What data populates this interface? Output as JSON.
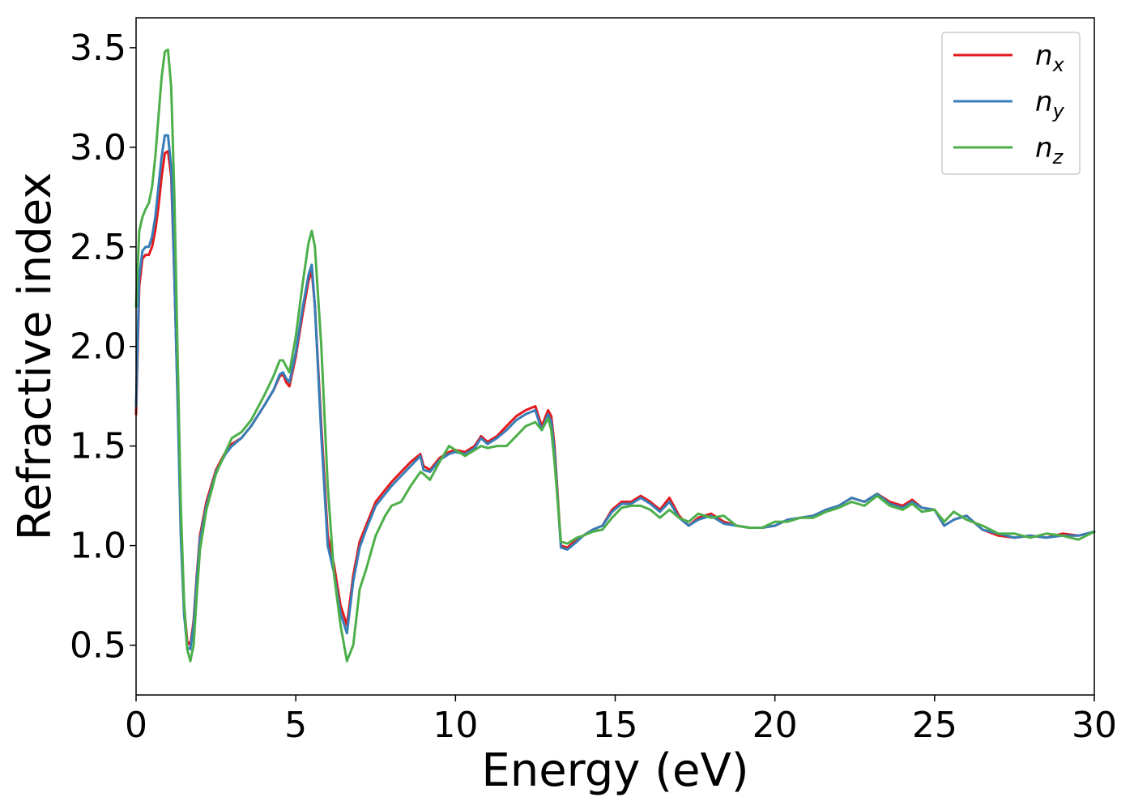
{
  "chart_data": {
    "type": "line",
    "title": "",
    "xlabel": "Energy (eV)",
    "ylabel": "Refractive index",
    "xlim": [
      0,
      30
    ],
    "ylim": [
      0.25,
      3.65
    ],
    "xticks": [
      0,
      5,
      10,
      15,
      20,
      25,
      30
    ],
    "yticks": [
      0.5,
      1.0,
      1.5,
      2.0,
      2.5,
      3.0,
      3.5
    ],
    "xtick_labels": [
      "0",
      "5",
      "10",
      "15",
      "20",
      "25",
      "30"
    ],
    "ytick_labels": [
      "0.5",
      "1.0",
      "1.5",
      "2.0",
      "2.5",
      "3.0",
      "3.5"
    ],
    "grid": false,
    "legend_position": "top-right",
    "series": [
      {
        "name": "n",
        "subscript": "x",
        "color": "#e41a1c",
        "x": [
          0,
          0.1,
          0.2,
          0.3,
          0.4,
          0.5,
          0.6,
          0.7,
          0.8,
          0.9,
          1.0,
          1.1,
          1.2,
          1.3,
          1.4,
          1.5,
          1.6,
          1.7,
          1.8,
          1.9,
          2.0,
          2.2,
          2.5,
          2.8,
          3.0,
          3.3,
          3.6,
          4.0,
          4.3,
          4.5,
          4.6,
          4.7,
          4.8,
          5.0,
          5.2,
          5.4,
          5.5,
          5.6,
          5.8,
          6.0,
          6.2,
          6.4,
          6.6,
          6.8,
          7.0,
          7.2,
          7.5,
          7.8,
          8.0,
          8.3,
          8.6,
          8.9,
          9.0,
          9.2,
          9.5,
          9.8,
          10.0,
          10.3,
          10.6,
          10.8,
          11.0,
          11.3,
          11.6,
          11.9,
          12.2,
          12.5,
          12.7,
          12.9,
          13.0,
          13.1,
          13.3,
          13.5,
          13.8,
          14.0,
          14.3,
          14.6,
          14.9,
          15.2,
          15.5,
          15.8,
          16.1,
          16.4,
          16.7,
          17.0,
          17.3,
          17.6,
          18.0,
          18.4,
          18.8,
          19.2,
          19.6,
          20.0,
          20.4,
          20.8,
          21.2,
          21.6,
          22.0,
          22.4,
          22.8,
          23.2,
          23.6,
          24.0,
          24.3,
          24.6,
          25.0,
          25.3,
          25.6,
          26.0,
          26.5,
          27.0,
          27.5,
          28.0,
          28.5,
          29.0,
          29.5,
          30.0
        ],
        "y": [
          1.66,
          2.3,
          2.44,
          2.46,
          2.46,
          2.5,
          2.58,
          2.7,
          2.85,
          2.97,
          2.98,
          2.85,
          2.35,
          1.75,
          1.1,
          0.7,
          0.52,
          0.5,
          0.62,
          0.85,
          1.05,
          1.22,
          1.38,
          1.47,
          1.51,
          1.54,
          1.6,
          1.7,
          1.78,
          1.85,
          1.86,
          1.82,
          1.8,
          1.95,
          2.15,
          2.33,
          2.38,
          2.2,
          1.6,
          1.05,
          0.9,
          0.7,
          0.6,
          0.85,
          1.02,
          1.1,
          1.22,
          1.28,
          1.32,
          1.37,
          1.42,
          1.46,
          1.4,
          1.38,
          1.44,
          1.47,
          1.48,
          1.47,
          1.5,
          1.55,
          1.52,
          1.55,
          1.6,
          1.65,
          1.68,
          1.7,
          1.6,
          1.68,
          1.65,
          1.5,
          1.0,
          0.99,
          1.03,
          1.05,
          1.08,
          1.1,
          1.18,
          1.22,
          1.22,
          1.25,
          1.22,
          1.18,
          1.24,
          1.15,
          1.1,
          1.14,
          1.16,
          1.12,
          1.1,
          1.09,
          1.09,
          1.1,
          1.13,
          1.14,
          1.15,
          1.18,
          1.2,
          1.24,
          1.22,
          1.26,
          1.22,
          1.2,
          1.23,
          1.19,
          1.18,
          1.1,
          1.13,
          1.15,
          1.08,
          1.05,
          1.04,
          1.05,
          1.04,
          1.06,
          1.05,
          1.07
        ]
      },
      {
        "name": "n",
        "subscript": "y",
        "color": "#377eb8",
        "x": [
          0,
          0.1,
          0.2,
          0.3,
          0.4,
          0.5,
          0.6,
          0.7,
          0.8,
          0.9,
          1.0,
          1.1,
          1.2,
          1.3,
          1.4,
          1.5,
          1.6,
          1.7,
          1.8,
          1.9,
          2.0,
          2.2,
          2.5,
          2.8,
          3.0,
          3.3,
          3.6,
          4.0,
          4.3,
          4.5,
          4.6,
          4.7,
          4.8,
          5.0,
          5.2,
          5.4,
          5.5,
          5.6,
          5.8,
          6.0,
          6.2,
          6.4,
          6.6,
          6.8,
          7.0,
          7.2,
          7.5,
          7.8,
          8.0,
          8.3,
          8.6,
          8.9,
          9.0,
          9.2,
          9.5,
          9.8,
          10.0,
          10.3,
          10.6,
          10.8,
          11.0,
          11.3,
          11.6,
          11.9,
          12.2,
          12.5,
          12.7,
          12.9,
          13.0,
          13.1,
          13.3,
          13.5,
          13.8,
          14.0,
          14.3,
          14.6,
          14.9,
          15.2,
          15.5,
          15.8,
          16.1,
          16.4,
          16.7,
          17.0,
          17.3,
          17.6,
          18.0,
          18.4,
          18.8,
          19.2,
          19.6,
          20.0,
          20.4,
          20.8,
          21.2,
          21.6,
          22.0,
          22.4,
          22.8,
          23.2,
          23.6,
          24.0,
          24.3,
          24.6,
          25.0,
          25.3,
          25.6,
          26.0,
          26.5,
          27.0,
          27.5,
          28.0,
          28.5,
          29.0,
          29.5,
          30.0
        ],
        "y": [
          1.7,
          2.35,
          2.48,
          2.5,
          2.5,
          2.55,
          2.65,
          2.8,
          2.95,
          3.06,
          3.06,
          2.9,
          2.35,
          1.72,
          1.05,
          0.66,
          0.49,
          0.48,
          0.6,
          0.83,
          1.03,
          1.2,
          1.37,
          1.46,
          1.5,
          1.54,
          1.6,
          1.7,
          1.78,
          1.86,
          1.87,
          1.84,
          1.82,
          1.97,
          2.18,
          2.36,
          2.41,
          2.2,
          1.55,
          1.0,
          0.86,
          0.66,
          0.56,
          0.82,
          0.99,
          1.08,
          1.2,
          1.26,
          1.3,
          1.35,
          1.4,
          1.45,
          1.38,
          1.37,
          1.43,
          1.46,
          1.47,
          1.46,
          1.49,
          1.54,
          1.51,
          1.54,
          1.58,
          1.63,
          1.66,
          1.68,
          1.58,
          1.66,
          1.62,
          1.47,
          0.99,
          0.98,
          1.02,
          1.05,
          1.08,
          1.1,
          1.17,
          1.21,
          1.21,
          1.24,
          1.21,
          1.17,
          1.22,
          1.14,
          1.1,
          1.13,
          1.15,
          1.11,
          1.1,
          1.09,
          1.09,
          1.1,
          1.13,
          1.14,
          1.15,
          1.18,
          1.2,
          1.24,
          1.22,
          1.26,
          1.21,
          1.19,
          1.22,
          1.19,
          1.18,
          1.1,
          1.13,
          1.15,
          1.08,
          1.06,
          1.04,
          1.05,
          1.04,
          1.05,
          1.05,
          1.07
        ]
      },
      {
        "name": "n",
        "subscript": "z",
        "color": "#4daf4a",
        "x": [
          0,
          0.1,
          0.2,
          0.3,
          0.4,
          0.5,
          0.6,
          0.7,
          0.8,
          0.9,
          1.0,
          1.1,
          1.2,
          1.3,
          1.4,
          1.5,
          1.6,
          1.7,
          1.8,
          1.9,
          2.0,
          2.2,
          2.5,
          2.8,
          3.0,
          3.3,
          3.6,
          4.0,
          4.3,
          4.5,
          4.6,
          4.7,
          4.8,
          5.0,
          5.2,
          5.4,
          5.5,
          5.6,
          5.8,
          6.0,
          6.2,
          6.4,
          6.6,
          6.8,
          7.0,
          7.2,
          7.5,
          7.8,
          8.0,
          8.3,
          8.6,
          8.9,
          9.0,
          9.2,
          9.5,
          9.8,
          10.0,
          10.3,
          10.6,
          10.8,
          11.0,
          11.3,
          11.6,
          11.9,
          12.2,
          12.5,
          12.7,
          12.9,
          13.0,
          13.1,
          13.3,
          13.5,
          13.8,
          14.0,
          14.3,
          14.6,
          14.9,
          15.2,
          15.5,
          15.8,
          16.1,
          16.4,
          16.7,
          17.0,
          17.3,
          17.6,
          18.0,
          18.4,
          18.8,
          19.2,
          19.6,
          20.0,
          20.4,
          20.8,
          21.2,
          21.6,
          22.0,
          22.4,
          22.8,
          23.2,
          23.6,
          24.0,
          24.3,
          24.6,
          25.0,
          25.3,
          25.6,
          26.0,
          26.5,
          27.0,
          27.5,
          28.0,
          28.5,
          29.0,
          29.5,
          30.0
        ],
        "y": [
          2.2,
          2.58,
          2.65,
          2.69,
          2.72,
          2.8,
          2.95,
          3.15,
          3.35,
          3.48,
          3.49,
          3.3,
          2.75,
          1.95,
          1.2,
          0.72,
          0.48,
          0.42,
          0.5,
          0.75,
          0.98,
          1.18,
          1.36,
          1.47,
          1.54,
          1.57,
          1.63,
          1.75,
          1.85,
          1.93,
          1.93,
          1.9,
          1.87,
          2.05,
          2.3,
          2.52,
          2.58,
          2.5,
          2.0,
          1.3,
          0.85,
          0.6,
          0.42,
          0.5,
          0.78,
          0.88,
          1.05,
          1.15,
          1.2,
          1.22,
          1.3,
          1.37,
          1.36,
          1.33,
          1.42,
          1.5,
          1.48,
          1.45,
          1.48,
          1.5,
          1.49,
          1.5,
          1.5,
          1.55,
          1.6,
          1.62,
          1.58,
          1.64,
          1.58,
          1.42,
          1.02,
          1.01,
          1.04,
          1.05,
          1.07,
          1.08,
          1.14,
          1.19,
          1.2,
          1.2,
          1.18,
          1.14,
          1.18,
          1.14,
          1.12,
          1.16,
          1.14,
          1.15,
          1.1,
          1.09,
          1.09,
          1.12,
          1.12,
          1.14,
          1.14,
          1.17,
          1.19,
          1.22,
          1.2,
          1.25,
          1.2,
          1.18,
          1.21,
          1.17,
          1.18,
          1.12,
          1.17,
          1.13,
          1.1,
          1.06,
          1.06,
          1.04,
          1.06,
          1.05,
          1.03,
          1.07
        ]
      }
    ]
  }
}
